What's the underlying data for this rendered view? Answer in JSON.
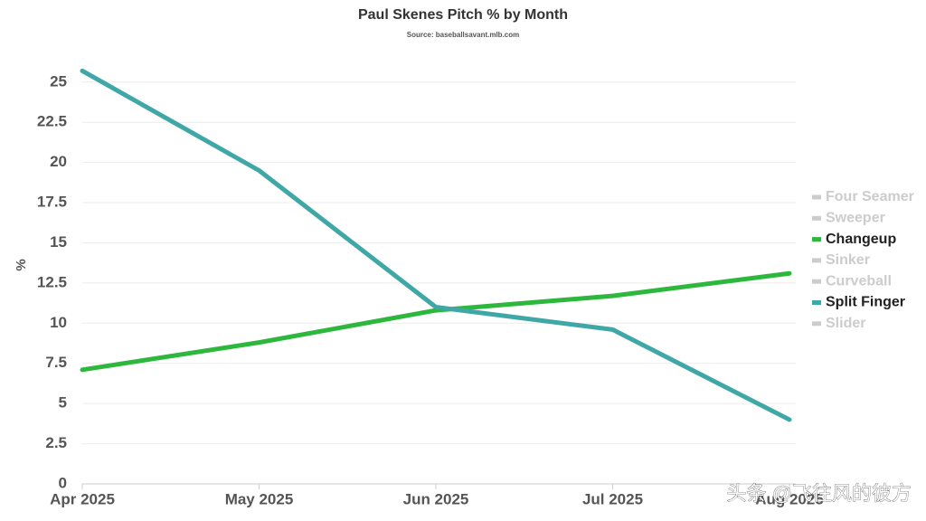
{
  "chart_data": {
    "type": "line",
    "title": "Paul Skenes Pitch % by Month",
    "subtitle": "Source: baseballsavant.mlb.com",
    "y_label": "%",
    "categories": [
      "Apr 2025",
      "May 2025",
      "Jun 2025",
      "Jul 2025",
      "Aug 2025"
    ],
    "series": [
      {
        "name": "Four Seamer",
        "color": "#cccccc",
        "hidden": true,
        "values": [
          null,
          null,
          null,
          null,
          null
        ]
      },
      {
        "name": "Sweeper",
        "color": "#cccccc",
        "hidden": true,
        "values": [
          null,
          null,
          null,
          null,
          null
        ]
      },
      {
        "name": "Changeup",
        "color": "#2db83d",
        "hidden": false,
        "values": [
          7.1,
          8.8,
          10.8,
          11.7,
          13.1
        ]
      },
      {
        "name": "Sinker",
        "color": "#cccccc",
        "hidden": true,
        "values": [
          null,
          null,
          null,
          null,
          null
        ]
      },
      {
        "name": "Curveball",
        "color": "#cccccc",
        "hidden": true,
        "values": [
          null,
          null,
          null,
          null,
          null
        ]
      },
      {
        "name": "Split Finger",
        "color": "#3fa7a6",
        "hidden": false,
        "values": [
          25.7,
          19.5,
          11.0,
          9.6,
          4.0
        ]
      },
      {
        "name": "Slider",
        "color": "#cccccc",
        "hidden": true,
        "values": [
          null,
          null,
          null,
          null,
          null
        ]
      }
    ],
    "ylim": [
      0,
      26
    ],
    "yticks": [
      0,
      2.5,
      5,
      7.5,
      10,
      12.5,
      15,
      17.5,
      20,
      22.5,
      25
    ],
    "grid": true,
    "legend": "right",
    "watermark": "头条 @飞往风的彼方"
  }
}
